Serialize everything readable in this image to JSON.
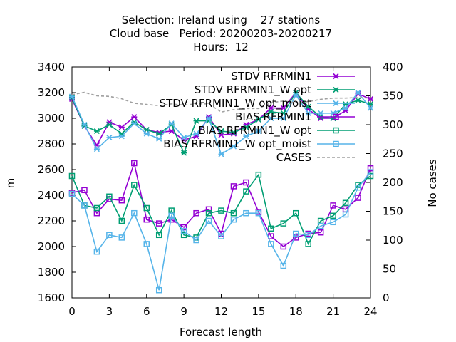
{
  "chart_data": {
    "type": "line",
    "title_lines": [
      "Selection: Ireland using    27 stations",
      "Cloud base   Period: 20200203-20200217",
      "Hours:  12"
    ],
    "xlabel": "Forecast length",
    "ylabel": "m",
    "y2label": "No cases",
    "xlim": [
      0,
      24
    ],
    "ylim": [
      1600,
      3400
    ],
    "y2lim": [
      0,
      400
    ],
    "xticks": [
      0,
      3,
      6,
      9,
      12,
      15,
      18,
      21,
      24
    ],
    "yticks": [
      1600,
      1800,
      2000,
      2200,
      2400,
      2600,
      2800,
      3000,
      3200,
      3400
    ],
    "y2ticks": [
      0,
      50,
      100,
      150,
      200,
      250,
      300,
      350,
      400
    ],
    "x": [
      0,
      1,
      2,
      3,
      4,
      5,
      6,
      7,
      8,
      9,
      10,
      11,
      12,
      13,
      14,
      15,
      16,
      17,
      18,
      19,
      20,
      21,
      22,
      23,
      24
    ],
    "series": [
      {
        "name": "STDV RFRMIN1",
        "color": "#9400d3",
        "marker": "x",
        "axis": "y1",
        "dash": "",
        "values": [
          3150,
          2940,
          2790,
          2970,
          2930,
          3010,
          2910,
          2890,
          2900,
          2830,
          2860,
          3010,
          2870,
          2880,
          2950,
          2990,
          3080,
          3080,
          3200,
          3070,
          3000,
          3000,
          3060,
          3190,
          3150
        ]
      },
      {
        "name": "STDV RFRMIN1_W opt",
        "color": "#009e73",
        "marker": "x",
        "axis": "y1",
        "dash": "",
        "values": [
          3160,
          2940,
          2900,
          2950,
          2880,
          2970,
          2910,
          2880,
          2950,
          2730,
          2980,
          2980,
          2900,
          2890,
          2930,
          2990,
          3050,
          3040,
          3200,
          3090,
          3010,
          3000,
          3110,
          3140,
          3110
        ]
      },
      {
        "name": "STDV RFRMIN1_W opt_moist",
        "color": "#56b4e9",
        "marker": "x",
        "axis": "y1",
        "dash": "",
        "values": [
          3170,
          2950,
          2760,
          2850,
          2860,
          2960,
          2880,
          2840,
          2960,
          2850,
          2880,
          3000,
          2720,
          2780,
          2860,
          2900,
          3000,
          3000,
          3180,
          3040,
          3040,
          3040,
          3080,
          3200,
          3080
        ]
      },
      {
        "name": "BIAS RFRMIN1",
        "color": "#9400d3",
        "marker": "square",
        "axis": "y1",
        "dash": "",
        "values": [
          2420,
          2440,
          2260,
          2370,
          2360,
          2650,
          2210,
          2180,
          2210,
          2150,
          2260,
          2290,
          2100,
          2470,
          2500,
          2270,
          2080,
          2000,
          2070,
          2100,
          2110,
          2320,
          2290,
          2380,
          2610
        ]
      },
      {
        "name": "BIAS RFRMIN1_W opt",
        "color": "#009e73",
        "marker": "square",
        "axis": "y1",
        "dash": "",
        "values": [
          2550,
          2320,
          2300,
          2390,
          2200,
          2480,
          2300,
          2090,
          2280,
          2090,
          2070,
          2260,
          2280,
          2260,
          2430,
          2560,
          2140,
          2180,
          2260,
          2020,
          2200,
          2240,
          2340,
          2480,
          2550
        ]
      },
      {
        "name": "BIAS RFRMIN1_W opt_moist",
        "color": "#56b4e9",
        "marker": "square",
        "axis": "y1",
        "dash": "",
        "values": [
          2410,
          2320,
          1960,
          2090,
          2070,
          2260,
          2020,
          1660,
          2240,
          2120,
          2050,
          2200,
          2080,
          2210,
          2260,
          2260,
          2020,
          1850,
          2100,
          2090,
          2160,
          2190,
          2250,
          2460,
          2580
        ]
      },
      {
        "name": "CASES",
        "color": "#a0a0a0",
        "marker": "none",
        "axis": "y2",
        "dash": "4,3",
        "values": [
          352,
          356,
          350,
          349,
          345,
          337,
          335,
          333,
          336,
          334,
          336,
          336,
          322,
          326,
          328,
          328,
          338,
          341,
          338,
          340,
          344,
          346,
          346,
          347,
          346
        ]
      }
    ]
  }
}
